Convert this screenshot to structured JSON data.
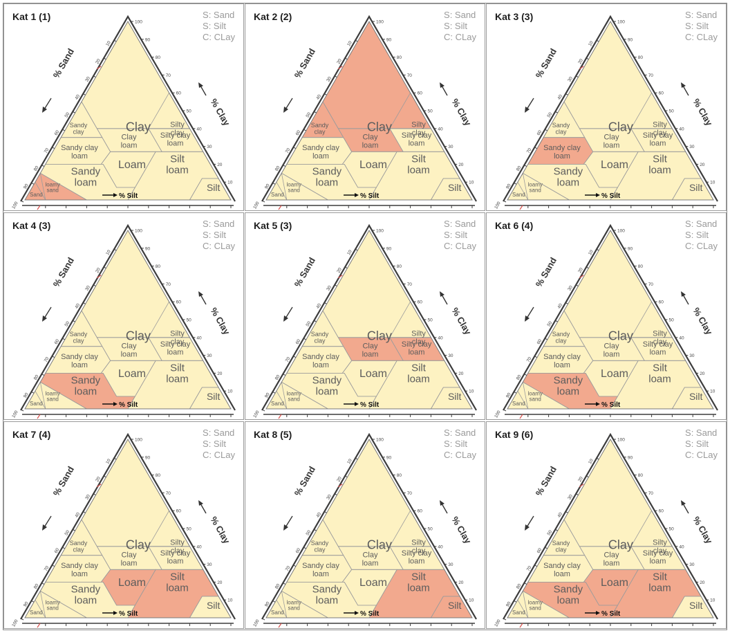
{
  "colors": {
    "fill": "#fdf2c2",
    "lines": "#9c9c9c",
    "frame": "#3c3c3c",
    "highlight": "#f2a98e",
    "label": "#5c5c5c",
    "legend": "#9a9a9a",
    "tick_mark": "#d9534f"
  },
  "legend": [
    "S: Sand",
    "S: Silt",
    "C: CLay"
  ],
  "axis_titles": {
    "sand": "% Sand",
    "clay": "% Clay",
    "silt": "% Silt"
  },
  "tick_labels": [
    "10",
    "20",
    "30",
    "40",
    "50",
    "60",
    "70",
    "80",
    "90",
    "100"
  ],
  "regions": [
    {
      "id": "clay",
      "lines": [
        "Clay"
      ]
    },
    {
      "id": "silty-clay",
      "lines": [
        "Silty",
        "clay"
      ]
    },
    {
      "id": "sandy-clay",
      "lines": [
        "Sandy",
        "clay"
      ]
    },
    {
      "id": "silty-clay-loam",
      "lines": [
        "Silty clay",
        "loam"
      ]
    },
    {
      "id": "clay-loam",
      "lines": [
        "Clay",
        "loam"
      ]
    },
    {
      "id": "sandy-clay-loam",
      "lines": [
        "Sandy clay",
        "loam"
      ]
    },
    {
      "id": "loam",
      "lines": [
        "Loam"
      ]
    },
    {
      "id": "silt-loam",
      "lines": [
        "Silt",
        "loam"
      ]
    },
    {
      "id": "sandy-loam",
      "lines": [
        "Sandy",
        "loam"
      ]
    },
    {
      "id": "silt",
      "lines": [
        "Silt"
      ]
    },
    {
      "id": "loamy-sand",
      "lines": [
        "loamy",
        "sand"
      ]
    },
    {
      "id": "sand",
      "lines": [
        "Sand"
      ]
    }
  ],
  "panels": [
    {
      "title": "Kat 1 (1)",
      "highlight": [
        "sand",
        "loamy-sand"
      ]
    },
    {
      "title": "Kat 2 (2)",
      "highlight": [
        "clay",
        "sandy-clay",
        "clay-loam",
        "silty-clay"
      ]
    },
    {
      "title": "Kat 3 (3)",
      "highlight": [
        "sandy-clay-loam"
      ]
    },
    {
      "title": "Kat 4 (3)",
      "highlight": [
        "sandy-loam"
      ]
    },
    {
      "title": "Kat 5 (3)",
      "highlight": [
        "clay-loam",
        "silty-clay-loam"
      ]
    },
    {
      "title": "Kat 6 (4)",
      "highlight": [
        "sandy-loam"
      ]
    },
    {
      "title": "Kat 7 (4)",
      "highlight": [
        "loam",
        "silt-loam"
      ]
    },
    {
      "title": "Kat 8 (5)",
      "highlight": [
        "silt-loam",
        "silt"
      ]
    },
    {
      "title": "Kat 9 (6)",
      "highlight": [
        "sandy-loam",
        "loam",
        "silt-loam"
      ]
    }
  ]
}
